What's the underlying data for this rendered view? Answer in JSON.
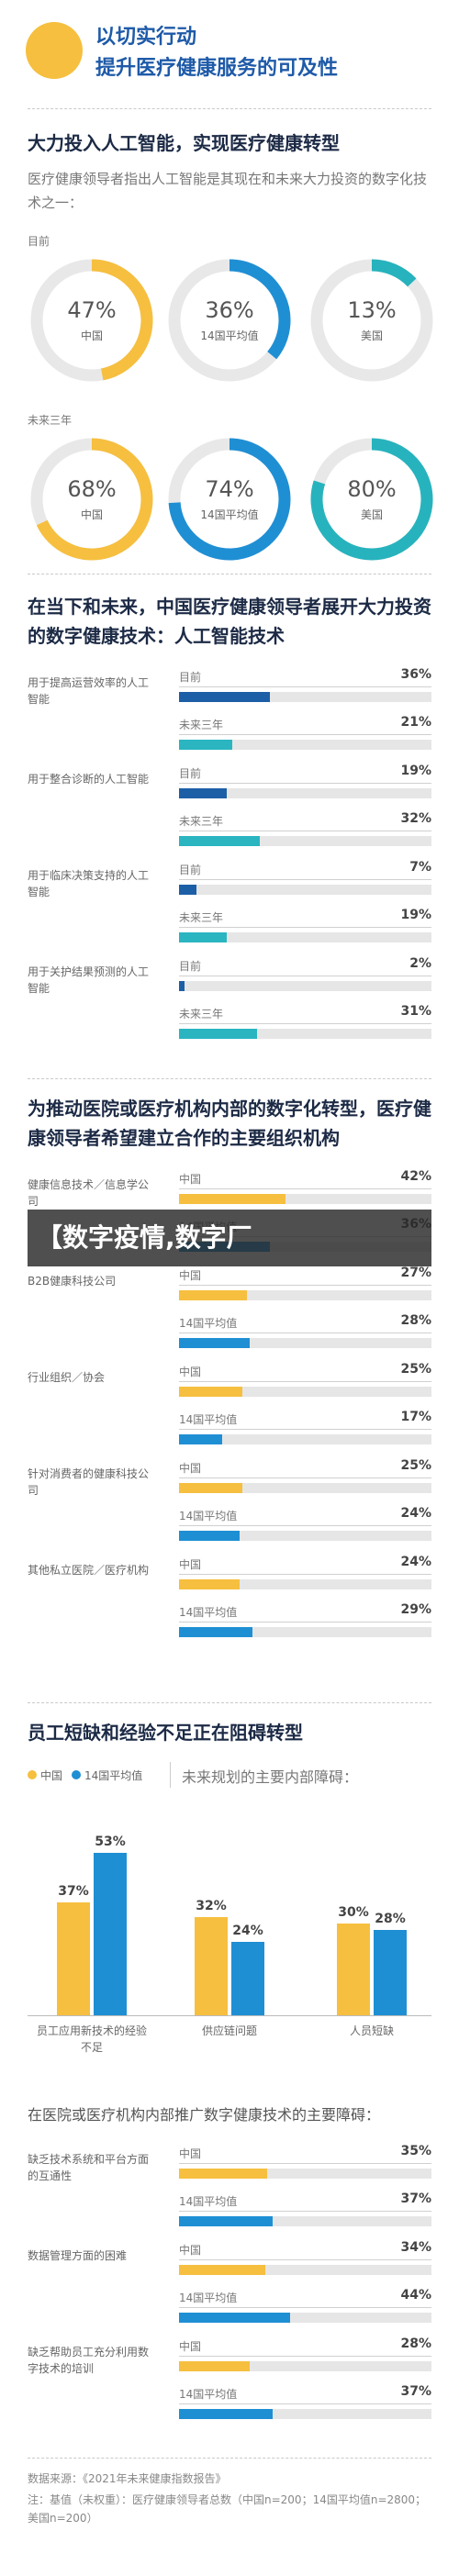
{
  "header": {
    "title": "以切实行动",
    "subtitle": "提升医疗健康服务的可及性"
  },
  "chart_data": [
    {
      "type": "donut",
      "title": "大力投入人工智能，实现医疗健康转型",
      "subtitle": "医疗健康领导者指出人工智能是其现在和未来大力投资的数字化技术之一：",
      "categories": [
        "中国",
        "14国平均值",
        "美国"
      ],
      "colors": [
        "#f6bf3f",
        "#1f8fd4",
        "#27b3bd"
      ],
      "series": [
        {
          "name": "目前",
          "values": [
            47,
            36,
            13
          ],
          "value_labels": [
            "47%",
            "36%",
            "13%"
          ]
        },
        {
          "name": "未来三年",
          "values": [
            68,
            74,
            80
          ],
          "value_labels": [
            "68%",
            "74%",
            "80%"
          ]
        }
      ]
    },
    {
      "type": "hbar",
      "title": "在当下和未来，中国医疗健康领导者展开大力投资的数字健康技术：人工智能技术",
      "categories": [
        "用于提高运营效率的人工智能",
        "用于整合诊断的人工智能",
        "用于临床决策支持的人工智能",
        "用于关护结果预测的人工智能"
      ],
      "xlim": [
        0,
        100
      ],
      "series": [
        {
          "name": "目前",
          "color": "#1c5fa6",
          "values": [
            36,
            19,
            7,
            2
          ],
          "value_labels": [
            "36%",
            "19%",
            "7%",
            "2%"
          ]
        },
        {
          "name": "未来三年",
          "color": "#2ab5c1",
          "values": [
            21,
            32,
            19,
            31
          ],
          "value_labels": [
            "21%",
            "32%",
            "19%",
            "31%"
          ]
        }
      ]
    },
    {
      "type": "hbar",
      "title": "为推动医院或医疗机构内部的数字化转型，医疗健康领导者希望建立合作的主要组织机构",
      "categories": [
        "健康信息技术／信息学公司",
        "B2B健康科技公司",
        "行业组织／协会",
        "针对消费者的健康科技公司",
        "其他私立医院／医疗机构"
      ],
      "xlim": [
        0,
        100
      ],
      "series": [
        {
          "name": "中国",
          "color": "#f6bf3f",
          "values": [
            42,
            27,
            25,
            25,
            24
          ],
          "value_labels": [
            "42%",
            "27%",
            "25%",
            "25%",
            "24%"
          ]
        },
        {
          "name": "14国平均值",
          "color": "#1f8fd4",
          "values": [
            36,
            28,
            17,
            24,
            29
          ],
          "value_labels": [
            "36%",
            "28%",
            "17%",
            "24%",
            "29%"
          ]
        }
      ]
    },
    {
      "type": "vbar",
      "title": "员工短缺和经验不足正在阻碍转型",
      "subtitle": "未来规划的主要内部障碍：",
      "categories": [
        "员工应用新技术的经验不足",
        "供应链问题",
        "人员短缺"
      ],
      "ylim": [
        0,
        60
      ],
      "legend": "top-left",
      "series": [
        {
          "name": "中国",
          "color": "#f6bf3f",
          "values": [
            37,
            32,
            30
          ],
          "value_labels": [
            "37%",
            "32%",
            "30%"
          ]
        },
        {
          "name": "14国平均值",
          "color": "#1f8fd4",
          "values": [
            53,
            24,
            28
          ],
          "value_labels": [
            "53%",
            "24%",
            "28%"
          ]
        }
      ]
    },
    {
      "type": "hbar",
      "title": "在医院或医疗机构内部推广数字健康技术的主要障碍：",
      "categories": [
        "缺乏技术系统和平台方面的互通性",
        "数据管理方面的困难",
        "缺乏帮助员工充分利用数字技术的培训"
      ],
      "xlim": [
        0,
        100
      ],
      "series": [
        {
          "name": "中国",
          "color": "#f6bf3f",
          "values": [
            35,
            34,
            28
          ],
          "value_labels": [
            "35%",
            "34%",
            "28%"
          ]
        },
        {
          "name": "14国平均值",
          "color": "#1f8fd4",
          "values": [
            37,
            44,
            37
          ],
          "value_labels": [
            "37%",
            "44%",
            "37%"
          ]
        }
      ]
    }
  ],
  "watermark": "【数字疫情,数字厂",
  "footer": {
    "source": "数据来源：《2021年未来健康指数报告》",
    "note": "注：基值（未权重）：医疗健康领导者总数（中国n=200；14国平均值n=2800；美国n=200）"
  }
}
